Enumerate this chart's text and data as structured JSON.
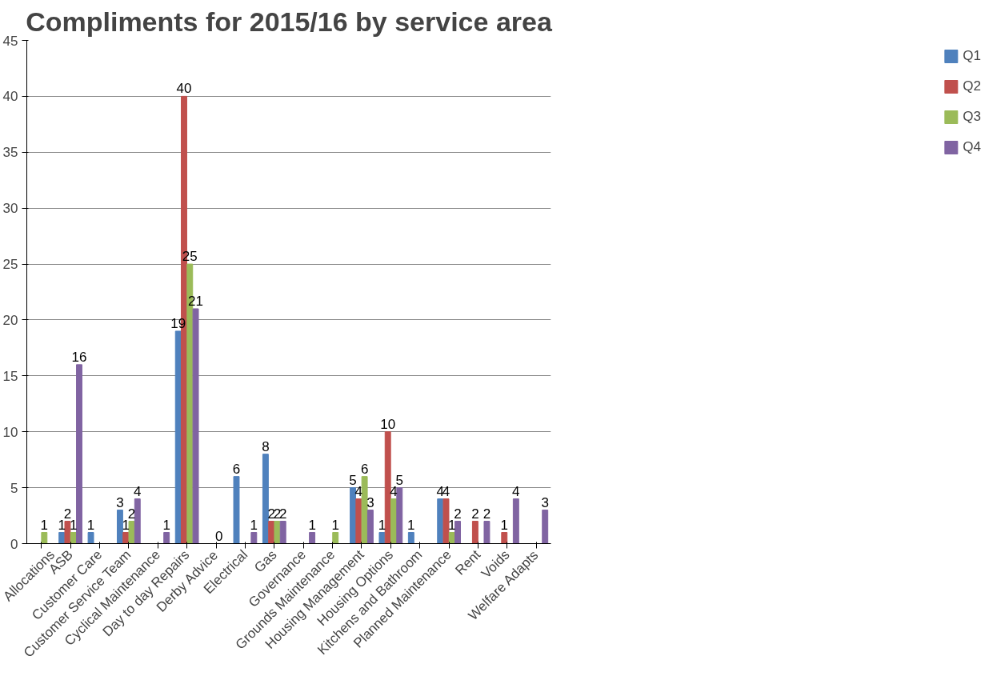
{
  "chart_data": {
    "type": "bar",
    "title": "Compliments for 2015/16 by service area",
    "categories": [
      "Allocations",
      "ASB",
      "Customer Care",
      "Customer Service Team",
      "Cyclical Maintenance",
      "Day to day Repairs",
      "Derby Advice",
      "Electrical",
      "Gas",
      "Governance",
      "Grounds Maintenance",
      "Housing Management",
      "Housing Options",
      "Kitchens and Bathroom",
      "Planned Maintenance",
      "Rent",
      "Voids",
      "Welfare Adapts"
    ],
    "series": [
      {
        "name": "Q1",
        "color": "#4f81bd",
        "values": [
          null,
          1,
          1,
          3,
          null,
          19,
          null,
          6,
          8,
          null,
          null,
          5,
          1,
          1,
          4,
          null,
          null,
          null
        ]
      },
      {
        "name": "Q2",
        "color": "#c0504d",
        "values": [
          null,
          2,
          null,
          1,
          null,
          40,
          null,
          null,
          2,
          null,
          null,
          4,
          10,
          null,
          4,
          2,
          1,
          null
        ]
      },
      {
        "name": "Q3",
        "color": "#9bbb59",
        "values": [
          1,
          1,
          null,
          2,
          null,
          25,
          0,
          null,
          2,
          null,
          1,
          6,
          4,
          null,
          1,
          null,
          null,
          null
        ]
      },
      {
        "name": "Q4",
        "color": "#8064a2",
        "values": [
          null,
          16,
          null,
          4,
          1,
          21,
          null,
          1,
          2,
          1,
          null,
          3,
          5,
          null,
          2,
          2,
          4,
          3
        ]
      }
    ],
    "ylim": [
      0,
      45
    ],
    "yticks": [
      0,
      5,
      10,
      15,
      20,
      25,
      30,
      35,
      40,
      45
    ],
    "grid": "y",
    "legend": "right",
    "data_labels": true
  }
}
